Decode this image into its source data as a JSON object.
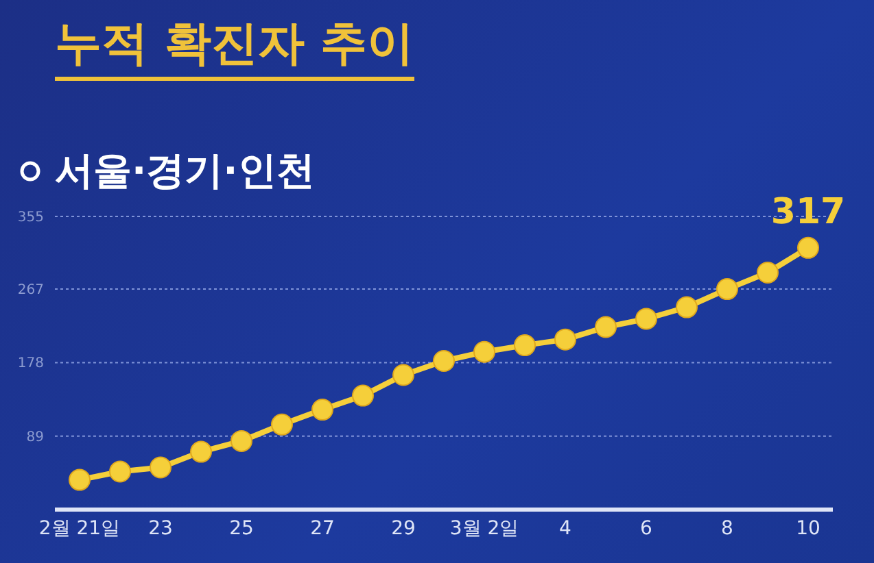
{
  "chart_data": {
    "type": "line",
    "title": "누적 확진자 추이",
    "categories": [
      "2월 21일",
      null,
      "23",
      null,
      "25",
      null,
      "27",
      null,
      "29",
      null,
      "3월 2일",
      null,
      "4",
      null,
      "6",
      null,
      "8",
      null,
      "10"
    ],
    "series": [
      {
        "name": "서울·경기·인천",
        "color": "#f5cf3a",
        "values": [
          36,
          46,
          51,
          70,
          83,
          103,
          121,
          138,
          163,
          180,
          191,
          199,
          206,
          221,
          231,
          245,
          267,
          287,
          317
        ],
        "value_labels": [
          null,
          null,
          null,
          null,
          null,
          null,
          null,
          null,
          null,
          null,
          null,
          null,
          null,
          null,
          null,
          null,
          null,
          null,
          "317"
        ]
      }
    ],
    "ylim": [
      0,
      355
    ],
    "yticks": [
      89,
      178,
      267,
      355
    ],
    "grid": "y",
    "legend": "top left",
    "marker": "circle",
    "line_style": "solid"
  }
}
